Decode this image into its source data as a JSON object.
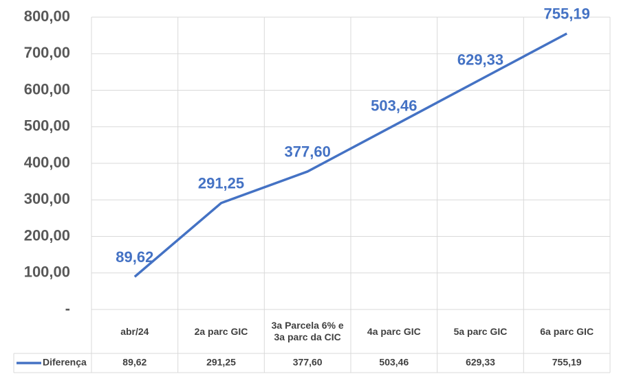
{
  "chart_data": {
    "type": "line",
    "categories": [
      "abr/24",
      "2a parc GIC",
      "3a Parcela 6% e 3a parc da CIC",
      "4a parc GIC",
      "5a parc GIC",
      "6a parc GIC"
    ],
    "series": [
      {
        "name": "Diferença",
        "color": "#4472c4",
        "values": [
          89.62,
          291.25,
          377.6,
          503.46,
          629.33,
          755.19
        ],
        "value_labels": [
          "89,62",
          "291,25",
          "377,60",
          "503,46",
          "629,33",
          "755,19"
        ]
      }
    ],
    "ylim": [
      0,
      800
    ],
    "yticks": [
      {
        "value": 0,
        "label": "-"
      },
      {
        "value": 100,
        "label": "100,00"
      },
      {
        "value": 200,
        "label": "200,00"
      },
      {
        "value": 300,
        "label": "300,00"
      },
      {
        "value": 400,
        "label": "400,00"
      },
      {
        "value": 500,
        "label": "500,00"
      },
      {
        "value": 600,
        "label": "600,00"
      },
      {
        "value": 700,
        "label": "700,00"
      },
      {
        "value": 800,
        "label": "800,00"
      }
    ],
    "grid": true
  }
}
